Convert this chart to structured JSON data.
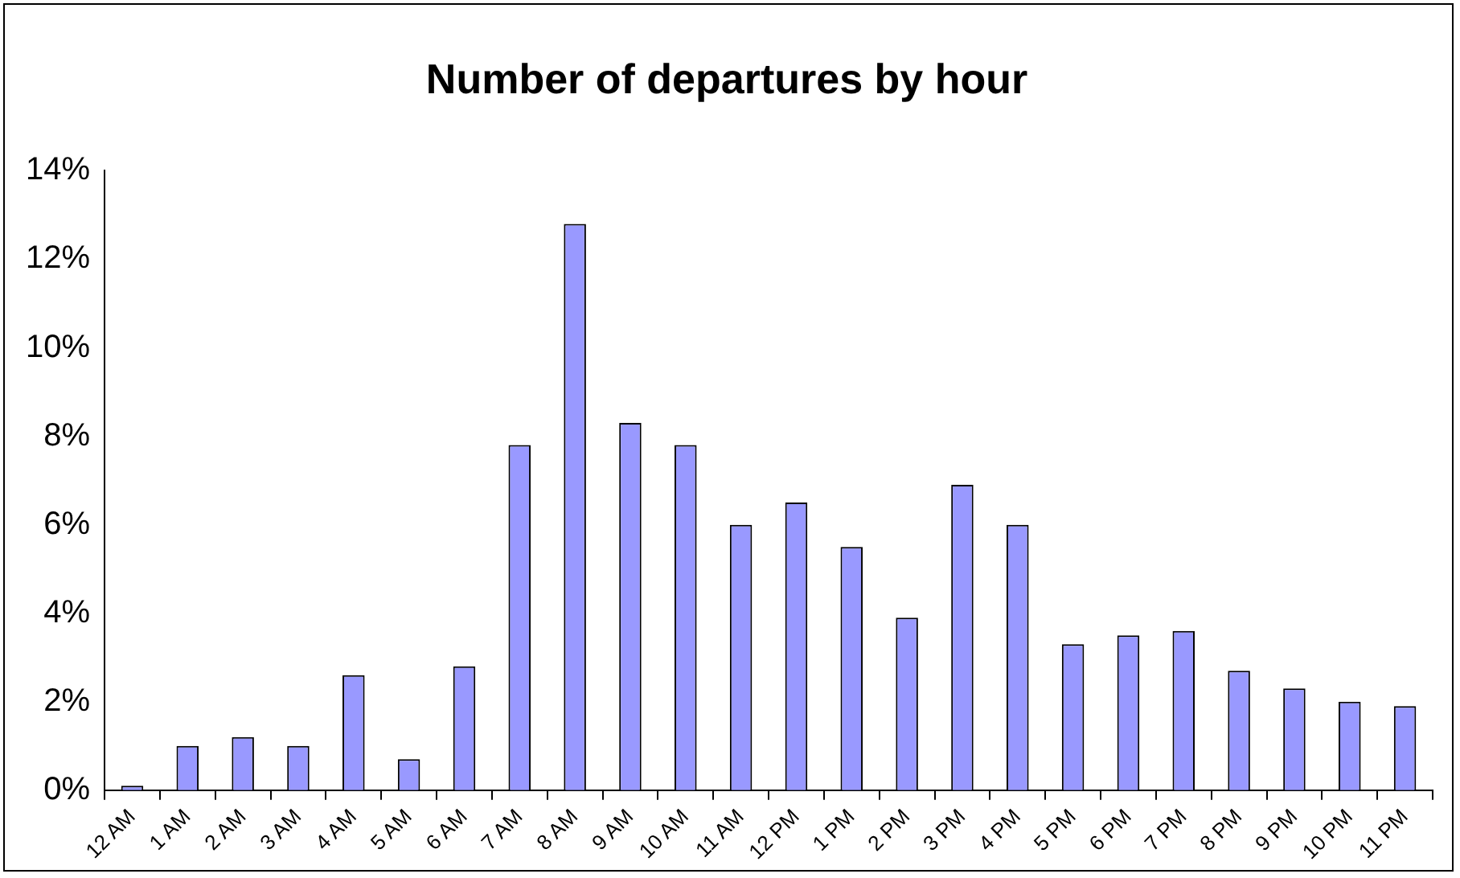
{
  "chart_data": {
    "type": "bar",
    "title": "Number of departures by hour",
    "categories": [
      "12 AM",
      "1 AM",
      "2 AM",
      "3 AM",
      "4 AM",
      "5 AM",
      "6 AM",
      "7 AM",
      "8 AM",
      "9 AM",
      "10 AM",
      "11 AM",
      "12 PM",
      "1 PM",
      "2 PM",
      "3 PM",
      "4 PM",
      "5 PM",
      "6 PM",
      "7 PM",
      "8 PM",
      "9 PM",
      "10 PM",
      "11 PM"
    ],
    "values": [
      0.1,
      1.0,
      1.2,
      1.0,
      2.6,
      0.7,
      2.8,
      7.8,
      12.8,
      8.3,
      7.8,
      6.0,
      6.5,
      5.5,
      3.9,
      6.9,
      6.0,
      3.3,
      3.5,
      3.6,
      2.7,
      2.3,
      2.0,
      1.9
    ],
    "color": "#9999ff",
    "ylim": [
      0,
      14
    ],
    "yticks": [
      {
        "value": 0,
        "label": "0%"
      },
      {
        "value": 2,
        "label": "2%"
      },
      {
        "value": 4,
        "label": "4%"
      },
      {
        "value": 6,
        "label": "6%"
      },
      {
        "value": 8,
        "label": "8%"
      },
      {
        "value": 10,
        "label": "10%"
      },
      {
        "value": 12,
        "label": "12%"
      },
      {
        "value": 14,
        "label": "14%"
      }
    ],
    "grid": false,
    "legend": false
  }
}
